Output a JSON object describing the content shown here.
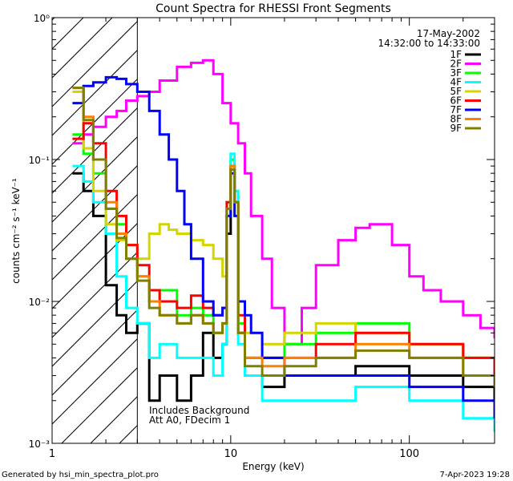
{
  "chart_data": {
    "type": "line",
    "title": "Count Spectra for RHESSI Front Segments",
    "xlabel": "Energy (keV)",
    "ylabel": "counts cm⁻² s⁻¹ keV⁻¹",
    "xscale": "log",
    "yscale": "log",
    "xlim": [
      1,
      300
    ],
    "ylim": [
      0.001,
      1
    ],
    "x_ticks": [
      {
        "value": 1,
        "label": "1"
      },
      {
        "value": 10,
        "label": "10"
      },
      {
        "value": 100,
        "label": "100"
      }
    ],
    "y_ticks": [
      {
        "value": 1,
        "label": "10⁰"
      },
      {
        "value": 0.1,
        "label": "10⁻¹"
      },
      {
        "value": 0.01,
        "label": "10⁻²"
      },
      {
        "value": 0.001,
        "label": "10⁻³"
      }
    ],
    "date": "17-May-2002",
    "time_range": "14:32:00 to 14:33:00",
    "shaded_region": {
      "from_keV": 1,
      "to_keV": 3
    },
    "annotations": [
      "Includes Background",
      "Att A0, FDecim 1"
    ],
    "legend_position": "top-right",
    "series": [
      {
        "name": "1F",
        "color": "#000000",
        "x": [
          1.3,
          1.5,
          1.7,
          2.0,
          2.3,
          2.6,
          3.0,
          3.5,
          4.0,
          5.0,
          6.0,
          7.0,
          8.0,
          9.0,
          9.5,
          10.0,
          10.5,
          11.0,
          12.0,
          15.0,
          20.0,
          30.0,
          50.0,
          100.0,
          200.0,
          300.0
        ],
        "y": [
          0.08,
          0.06,
          0.04,
          0.013,
          0.008,
          0.006,
          0.007,
          0.002,
          0.003,
          0.002,
          0.003,
          0.006,
          0.004,
          0.005,
          0.03,
          0.09,
          0.05,
          0.006,
          0.003,
          0.0025,
          0.003,
          0.003,
          0.0035,
          0.003,
          0.0025,
          0.0015
        ]
      },
      {
        "name": "2F",
        "color": "#ff00ff",
        "x": [
          1.3,
          1.5,
          1.7,
          2.0,
          2.3,
          2.6,
          3.0,
          3.5,
          4.0,
          5.0,
          6.0,
          7.0,
          8.0,
          9.0,
          10.0,
          11.0,
          12.0,
          13.0,
          15.0,
          17.0,
          20.0,
          25.0,
          30.0,
          40.0,
          50.0,
          60.0,
          80.0,
          100.0,
          120.0,
          150.0,
          200.0,
          250.0,
          300.0
        ],
        "y": [
          0.13,
          0.15,
          0.17,
          0.2,
          0.22,
          0.26,
          0.28,
          0.3,
          0.36,
          0.45,
          0.48,
          0.5,
          0.4,
          0.25,
          0.18,
          0.13,
          0.08,
          0.04,
          0.02,
          0.009,
          0.005,
          0.009,
          0.018,
          0.027,
          0.033,
          0.035,
          0.025,
          0.015,
          0.012,
          0.01,
          0.008,
          0.0065,
          0.0055
        ]
      },
      {
        "name": "3F",
        "color": "#00ff00",
        "x": [
          1.3,
          1.5,
          1.7,
          2.0,
          2.3,
          2.6,
          3.0,
          3.5,
          4.0,
          5.0,
          6.0,
          7.0,
          8.0,
          9.0,
          9.5,
          10.0,
          10.5,
          11.0,
          12.0,
          15.0,
          20.0,
          30.0,
          50.0,
          100.0,
          200.0,
          300.0
        ],
        "y": [
          0.15,
          0.11,
          0.08,
          0.045,
          0.035,
          0.02,
          0.015,
          0.01,
          0.012,
          0.008,
          0.009,
          0.008,
          0.006,
          0.007,
          0.04,
          0.1,
          0.06,
          0.007,
          0.004,
          0.004,
          0.005,
          0.006,
          0.007,
          0.005,
          0.004,
          0.003
        ]
      },
      {
        "name": "4F",
        "color": "#00ffff",
        "x": [
          1.3,
          1.5,
          1.7,
          2.0,
          2.3,
          2.6,
          3.0,
          3.5,
          4.0,
          5.0,
          6.0,
          7.0,
          8.0,
          9.0,
          9.5,
          10.0,
          10.5,
          11.0,
          12.0,
          15.0,
          20.0,
          30.0,
          50.0,
          100.0,
          200.0,
          300.0
        ],
        "y": [
          0.09,
          0.07,
          0.05,
          0.03,
          0.015,
          0.009,
          0.007,
          0.004,
          0.005,
          0.004,
          0.004,
          0.004,
          0.003,
          0.005,
          0.05,
          0.11,
          0.06,
          0.005,
          0.003,
          0.002,
          0.002,
          0.002,
          0.0025,
          0.002,
          0.0015,
          0.0012
        ]
      },
      {
        "name": "5F",
        "color": "#d4d400",
        "x": [
          1.3,
          1.5,
          1.7,
          2.0,
          2.3,
          2.6,
          3.0,
          3.5,
          4.0,
          4.5,
          5.0,
          6.0,
          7.0,
          8.0,
          9.0,
          9.5,
          10.0,
          10.5,
          11.0,
          12.0,
          15.0,
          20.0,
          30.0,
          50.0,
          100.0,
          200.0,
          300.0
        ],
        "y": [
          0.3,
          0.12,
          0.06,
          0.035,
          0.027,
          0.025,
          0.02,
          0.03,
          0.035,
          0.032,
          0.03,
          0.027,
          0.025,
          0.02,
          0.015,
          0.05,
          0.09,
          0.05,
          0.01,
          0.006,
          0.005,
          0.006,
          0.007,
          0.006,
          0.005,
          0.004,
          0.003
        ]
      },
      {
        "name": "6F",
        "color": "#ff0000",
        "x": [
          1.3,
          1.5,
          1.7,
          2.0,
          2.3,
          2.6,
          3.0,
          3.5,
          4.0,
          5.0,
          6.0,
          7.0,
          8.0,
          9.0,
          9.5,
          10.0,
          10.5,
          11.0,
          12.0,
          15.0,
          20.0,
          30.0,
          50.0,
          100.0,
          200.0,
          300.0
        ],
        "y": [
          0.14,
          0.18,
          0.13,
          0.06,
          0.04,
          0.025,
          0.018,
          0.012,
          0.01,
          0.009,
          0.011,
          0.009,
          0.008,
          0.009,
          0.05,
          0.09,
          0.05,
          0.008,
          0.004,
          0.004,
          0.004,
          0.005,
          0.006,
          0.005,
          0.004,
          0.003
        ]
      },
      {
        "name": "7F",
        "color": "#0000ff",
        "x": [
          1.3,
          1.5,
          1.7,
          2.0,
          2.3,
          2.6,
          3.0,
          3.5,
          4.0,
          4.5,
          5.0,
          5.5,
          6.0,
          7.0,
          8.0,
          9.0,
          9.5,
          10.0,
          10.5,
          11.0,
          12.0,
          13.0,
          15.0,
          20.0,
          30.0,
          50.0,
          100.0,
          200.0,
          300.0
        ],
        "y": [
          0.25,
          0.33,
          0.35,
          0.38,
          0.37,
          0.34,
          0.3,
          0.22,
          0.15,
          0.1,
          0.06,
          0.035,
          0.02,
          0.01,
          0.008,
          0.009,
          0.04,
          0.08,
          0.04,
          0.01,
          0.008,
          0.006,
          0.004,
          0.003,
          0.003,
          0.003,
          0.0025,
          0.002,
          0.0015
        ]
      },
      {
        "name": "8F",
        "color": "#ff8000",
        "x": [
          1.3,
          1.5,
          1.7,
          2.0,
          2.3,
          2.6,
          3.0,
          3.5,
          4.0,
          5.0,
          6.0,
          7.0,
          8.0,
          9.0,
          9.5,
          10.0,
          10.5,
          11.0,
          12.0,
          15.0,
          20.0,
          30.0,
          50.0,
          100.0,
          200.0,
          300.0
        ],
        "y": [
          0.32,
          0.2,
          0.1,
          0.05,
          0.03,
          0.02,
          0.015,
          0.01,
          0.008,
          0.007,
          0.008,
          0.007,
          0.006,
          0.007,
          0.045,
          0.09,
          0.05,
          0.006,
          0.004,
          0.0035,
          0.004,
          0.004,
          0.005,
          0.004,
          0.003,
          0.0025
        ]
      },
      {
        "name": "9F",
        "color": "#808000",
        "x": [
          1.3,
          1.5,
          1.7,
          2.0,
          2.3,
          2.6,
          3.0,
          3.5,
          4.0,
          5.0,
          6.0,
          7.0,
          8.0,
          9.0,
          9.5,
          10.0,
          10.5,
          11.0,
          12.0,
          15.0,
          20.0,
          30.0,
          50.0,
          100.0,
          200.0,
          300.0
        ],
        "y": [
          0.32,
          0.19,
          0.1,
          0.045,
          0.028,
          0.02,
          0.014,
          0.009,
          0.008,
          0.007,
          0.008,
          0.007,
          0.006,
          0.007,
          0.045,
          0.085,
          0.05,
          0.006,
          0.0035,
          0.003,
          0.0035,
          0.004,
          0.0045,
          0.004,
          0.003,
          0.0025
        ]
      }
    ]
  },
  "footer": {
    "generated_by": "Generated by hsi_min_spectra_plot.pro",
    "timestamp": "7-Apr-2023 19:28"
  }
}
